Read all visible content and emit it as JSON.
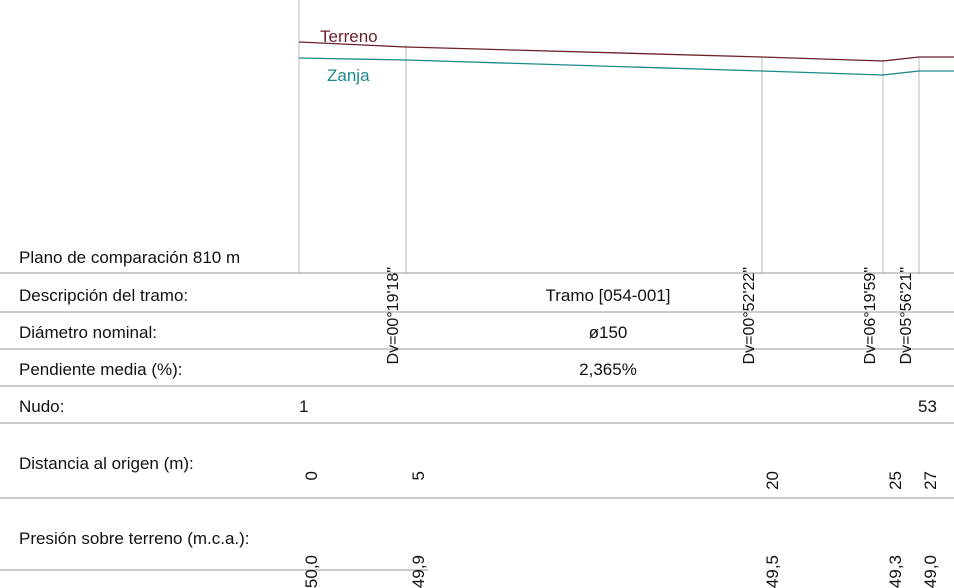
{
  "profile": {
    "terrain_label": "Terreno",
    "trench_label": "Zanja",
    "comparison_plane": "Plano de comparación 810 m",
    "deflections": [
      {
        "station": 5,
        "label": "Dv=00°19'18\""
      },
      {
        "station": 20,
        "label": "Dv=00°52'22\""
      },
      {
        "station": 25,
        "label": "Dv=06°19'59\""
      },
      {
        "station": 27,
        "label": "Dv=05°56'21\""
      }
    ],
    "colors": {
      "terrain": "#6b1f2a",
      "trench": "#1a8a8a",
      "grid": "#b8b8b8"
    }
  },
  "table": {
    "description": {
      "label": "Descripción del tramo:",
      "value": "Tramo [054-001]"
    },
    "diameter": {
      "label": "Diámetro nominal:",
      "value": "ø150"
    },
    "slope": {
      "label": "Pendiente media (%):",
      "value": "2,365%"
    },
    "node": {
      "label": "Nudo:",
      "start": "1",
      "end": "53"
    },
    "distance": {
      "label": "Distancia al origen (m):",
      "values": [
        "0",
        "5",
        "20",
        "25",
        "27"
      ]
    },
    "pressure": {
      "label": "Presión sobre terreno (m.c.a.):",
      "values": [
        "50,0",
        "49,9",
        "49,5",
        "49,3",
        "49,0"
      ]
    }
  }
}
